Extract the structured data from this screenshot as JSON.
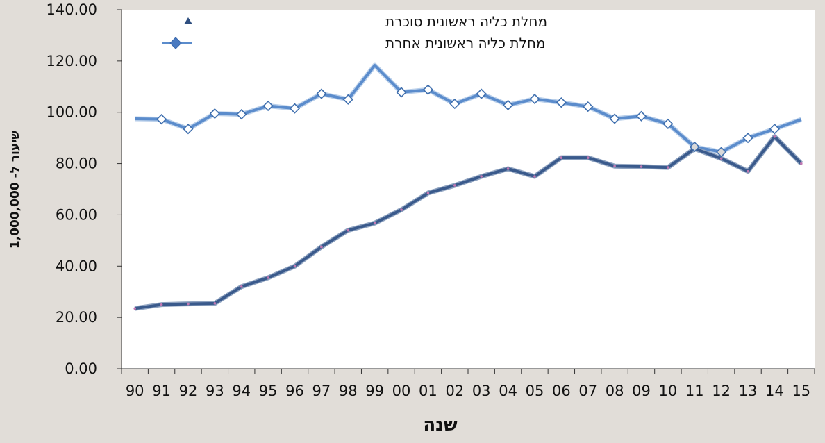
{
  "chart_data": {
    "type": "line",
    "xlabel": "שנה",
    "ylabel": "שיעור ל- 1,000,000",
    "ylim": [
      0,
      140
    ],
    "yticks": [
      "0.00",
      "20.00",
      "40.00",
      "60.00",
      "80.00",
      "100.00",
      "120.00",
      "140.00"
    ],
    "categories": [
      "90",
      "91",
      "92",
      "93",
      "94",
      "95",
      "96",
      "97",
      "98",
      "99",
      "00",
      "01",
      "02",
      "03",
      "04",
      "05",
      "06",
      "07",
      "08",
      "09",
      "10",
      "11",
      "12",
      "13",
      "14",
      "15"
    ],
    "legend_position": "top-left",
    "grid": false,
    "series": [
      {
        "name": "מחלת כליה ראשונית סוכרת",
        "marker": "triangle",
        "color": "#3a5a8c",
        "values": [
          23.5,
          25.0,
          25.3,
          25.5,
          32.0,
          35.5,
          40.0,
          47.5,
          54.0,
          56.8,
          62.0,
          68.5,
          71.5,
          75.0,
          78.0,
          75.0,
          82.3,
          82.3,
          79.0,
          78.8,
          78.5,
          85.8,
          82.0,
          77.0,
          90.5,
          80.0
        ]
      },
      {
        "name": "מחלת כליה ראשונית אחרת",
        "marker": "diamond",
        "color": "#5b8ccc",
        "values": [
          97.5,
          97.3,
          93.5,
          99.5,
          99.2,
          102.5,
          101.5,
          107.2,
          105.0,
          118.3,
          107.8,
          108.8,
          103.3,
          107.2,
          102.8,
          105.2,
          103.8,
          102.2,
          97.5,
          98.5,
          95.5,
          86.5,
          84.5,
          90.0,
          93.5,
          97.2
        ]
      }
    ]
  }
}
